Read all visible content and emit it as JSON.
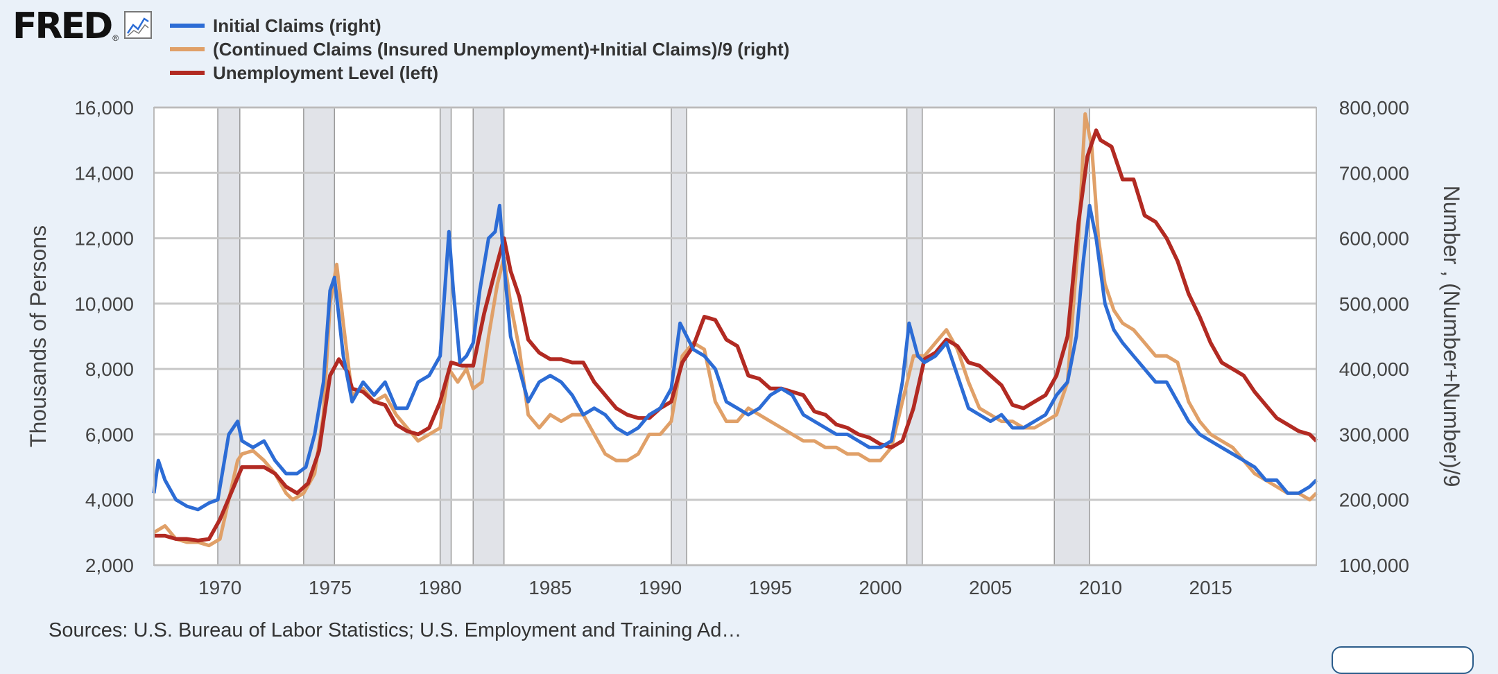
{
  "logo": {
    "text": "FRED",
    "reg": "®"
  },
  "colors": {
    "initial": "#2c6cd5",
    "continued": "#e0a068",
    "unemployment": "#b22a22",
    "recession": "#e1e3e8",
    "grid": "#c8c8c8"
  },
  "source_text": "Sources: U.S. Bureau of Labor Statistics; U.S. Employment and Training Ad…",
  "chart_data": {
    "type": "line",
    "ylabel_left": "Thousands of Persons",
    "ylabel_right": "Number , (Number+Number)/9",
    "ylim_left": [
      2000,
      16000
    ],
    "ylim_right": [
      100000,
      800000
    ],
    "xlim": [
      1967.0,
      2019.8
    ],
    "x_ticks": [
      1970,
      1975,
      1980,
      1985,
      1990,
      1995,
      2000,
      2005,
      2010,
      2015
    ],
    "y_ticks_left": [
      "16,000",
      "14,000",
      "12,000",
      "10,000",
      "8,000",
      "6,000",
      "4,000",
      "2,000"
    ],
    "y_ticks_right": [
      "800,000",
      "700,000",
      "600,000",
      "500,000",
      "400,000",
      "300,000",
      "200,000",
      "100,000"
    ],
    "grid": true,
    "legend_position": "top-left",
    "recessions": [
      [
        1969.9,
        1970.9
      ],
      [
        1973.8,
        1975.2
      ],
      [
        1980.0,
        1980.5
      ],
      [
        1981.5,
        1982.9
      ],
      [
        1990.5,
        1991.2
      ],
      [
        2001.2,
        2001.9
      ],
      [
        2007.9,
        2009.5
      ]
    ],
    "series": [
      {
        "name": "Initial Claims (right)",
        "axis": "right",
        "x": [
          1967.0,
          1967.2,
          1967.5,
          1968.0,
          1968.5,
          1969.0,
          1969.5,
          1969.9,
          1970.2,
          1970.4,
          1970.8,
          1971.0,
          1971.5,
          1972.0,
          1972.5,
          1973.0,
          1973.5,
          1973.9,
          1974.3,
          1974.7,
          1975.0,
          1975.2,
          1975.6,
          1976.0,
          1976.5,
          1977.0,
          1977.5,
          1978.0,
          1978.5,
          1979.0,
          1979.5,
          1980.0,
          1980.4,
          1980.6,
          1980.9,
          1981.2,
          1981.5,
          1981.8,
          1982.2,
          1982.5,
          1982.7,
          1982.9,
          1983.2,
          1983.6,
          1984.0,
          1984.5,
          1985.0,
          1985.5,
          1986.0,
          1986.5,
          1987.0,
          1987.5,
          1988.0,
          1988.5,
          1989.0,
          1989.5,
          1990.0,
          1990.5,
          1990.9,
          1991.2,
          1991.5,
          1992.0,
          1992.5,
          1993.0,
          1993.5,
          1994.0,
          1994.5,
          1995.0,
          1995.5,
          1996.0,
          1996.5,
          1997.0,
          1997.5,
          1998.0,
          1998.5,
          1999.0,
          1999.5,
          2000.0,
          2000.5,
          2001.0,
          2001.3,
          2001.7,
          2002.0,
          2002.5,
          2003.0,
          2003.5,
          2004.0,
          2004.5,
          2005.0,
          2005.5,
          2006.0,
          2006.5,
          2007.0,
          2007.5,
          2008.0,
          2008.5,
          2008.9,
          2009.2,
          2009.5,
          2009.8,
          2010.2,
          2010.6,
          2011.0,
          2011.5,
          2012.0,
          2012.5,
          2013.0,
          2013.5,
          2014.0,
          2014.5,
          2015.0,
          2015.5,
          2016.0,
          2016.5,
          2017.0,
          2017.5,
          2018.0,
          2018.5,
          2019.0,
          2019.5,
          2019.8
        ],
        "y": [
          210000,
          260000,
          230000,
          200000,
          190000,
          185000,
          195000,
          200000,
          260000,
          300000,
          320000,
          290000,
          280000,
          290000,
          260000,
          240000,
          240000,
          250000,
          300000,
          380000,
          520000,
          540000,
          420000,
          350000,
          380000,
          360000,
          380000,
          340000,
          340000,
          380000,
          390000,
          420000,
          610000,
          520000,
          410000,
          420000,
          440000,
          520000,
          600000,
          610000,
          650000,
          560000,
          450000,
          400000,
          350000,
          380000,
          390000,
          380000,
          360000,
          330000,
          340000,
          330000,
          310000,
          300000,
          310000,
          330000,
          340000,
          370000,
          470000,
          450000,
          430000,
          420000,
          400000,
          350000,
          340000,
          330000,
          340000,
          360000,
          370000,
          360000,
          330000,
          320000,
          310000,
          300000,
          300000,
          290000,
          280000,
          280000,
          290000,
          380000,
          470000,
          420000,
          410000,
          420000,
          440000,
          390000,
          340000,
          330000,
          320000,
          330000,
          310000,
          310000,
          320000,
          330000,
          360000,
          380000,
          450000,
          560000,
          650000,
          600000,
          500000,
          460000,
          440000,
          420000,
          400000,
          380000,
          380000,
          350000,
          320000,
          300000,
          290000,
          280000,
          270000,
          260000,
          250000,
          230000,
          230000,
          210000,
          210000,
          220000,
          230000
        ],
        "stroke_width": 5
      },
      {
        "name": "(Continued Claims (Insured Unemployment)+Initial Claims)/9 (right)",
        "axis": "right",
        "x": [
          1967.0,
          1967.5,
          1968.0,
          1968.5,
          1969.0,
          1969.5,
          1970.0,
          1970.4,
          1970.8,
          1971.0,
          1971.5,
          1972.0,
          1972.5,
          1973.0,
          1973.3,
          1973.8,
          1974.3,
          1974.7,
          1975.0,
          1975.3,
          1975.6,
          1976.0,
          1976.5,
          1977.0,
          1977.5,
          1978.0,
          1978.5,
          1979.0,
          1979.5,
          1980.0,
          1980.4,
          1980.8,
          1981.2,
          1981.5,
          1981.9,
          1982.2,
          1982.6,
          1982.9,
          1983.2,
          1983.6,
          1984.0,
          1984.5,
          1985.0,
          1985.5,
          1986.0,
          1986.5,
          1987.0,
          1987.5,
          1988.0,
          1988.5,
          1989.0,
          1989.5,
          1990.0,
          1990.5,
          1991.0,
          1991.5,
          1992.0,
          1992.5,
          1993.0,
          1993.5,
          1994.0,
          1994.5,
          1995.0,
          1995.5,
          1996.0,
          1996.5,
          1997.0,
          1997.5,
          1998.0,
          1998.5,
          1999.0,
          1999.5,
          2000.0,
          2000.5,
          2001.0,
          2001.5,
          2002.0,
          2002.5,
          2003.0,
          2003.5,
          2004.0,
          2004.5,
          2005.0,
          2005.5,
          2006.0,
          2006.5,
          2007.0,
          2007.5,
          2008.0,
          2008.5,
          2009.0,
          2009.3,
          2009.6,
          2009.9,
          2010.2,
          2010.6,
          2011.0,
          2011.5,
          2012.0,
          2012.5,
          2013.0,
          2013.5,
          2014.0,
          2014.5,
          2015.0,
          2015.5,
          2016.0,
          2016.5,
          2017.0,
          2017.5,
          2018.0,
          2018.5,
          2019.0,
          2019.5,
          2019.8
        ],
        "y": [
          150000,
          160000,
          140000,
          135000,
          135000,
          130000,
          140000,
          200000,
          260000,
          270000,
          275000,
          260000,
          240000,
          210000,
          200000,
          210000,
          240000,
          330000,
          500000,
          560000,
          470000,
          360000,
          370000,
          350000,
          360000,
          330000,
          310000,
          290000,
          300000,
          310000,
          400000,
          380000,
          400000,
          370000,
          380000,
          450000,
          530000,
          570000,
          500000,
          430000,
          330000,
          310000,
          330000,
          320000,
          330000,
          330000,
          300000,
          270000,
          260000,
          260000,
          270000,
          300000,
          300000,
          320000,
          420000,
          440000,
          430000,
          350000,
          320000,
          320000,
          340000,
          330000,
          320000,
          310000,
          300000,
          290000,
          290000,
          280000,
          280000,
          270000,
          270000,
          260000,
          260000,
          280000,
          350000,
          420000,
          420000,
          440000,
          460000,
          430000,
          380000,
          340000,
          330000,
          320000,
          320000,
          310000,
          310000,
          320000,
          330000,
          380000,
          600000,
          790000,
          740000,
          600000,
          530000,
          490000,
          470000,
          460000,
          440000,
          420000,
          420000,
          410000,
          350000,
          320000,
          300000,
          290000,
          280000,
          260000,
          240000,
          230000,
          220000,
          210000,
          210000,
          200000,
          210000
        ],
        "stroke_width": 5
      },
      {
        "name": "Unemployment Level (left)",
        "axis": "left",
        "x": [
          1967.0,
          1967.5,
          1968.0,
          1968.5,
          1969.0,
          1969.5,
          1970.0,
          1970.5,
          1971.0,
          1971.5,
          1972.0,
          1972.5,
          1973.0,
          1973.5,
          1974.0,
          1974.5,
          1975.0,
          1975.4,
          1975.8,
          1976.0,
          1976.5,
          1977.0,
          1977.5,
          1978.0,
          1978.5,
          1979.0,
          1979.5,
          1980.0,
          1980.5,
          1981.0,
          1981.5,
          1982.0,
          1982.5,
          1982.9,
          1983.2,
          1983.6,
          1984.0,
          1984.5,
          1985.0,
          1985.5,
          1986.0,
          1986.5,
          1987.0,
          1987.5,
          1988.0,
          1988.5,
          1989.0,
          1989.5,
          1990.0,
          1990.5,
          1991.0,
          1991.5,
          1992.0,
          1992.5,
          1993.0,
          1993.5,
          1994.0,
          1994.5,
          1995.0,
          1995.5,
          1996.0,
          1996.5,
          1997.0,
          1997.5,
          1998.0,
          1998.5,
          1999.0,
          1999.5,
          2000.0,
          2000.5,
          2001.0,
          2001.5,
          2002.0,
          2002.5,
          2003.0,
          2003.5,
          2004.0,
          2004.5,
          2005.0,
          2005.5,
          2006.0,
          2006.5,
          2007.0,
          2007.5,
          2008.0,
          2008.5,
          2009.0,
          2009.4,
          2009.8,
          2010.0,
          2010.5,
          2011.0,
          2011.5,
          2012.0,
          2012.5,
          2013.0,
          2013.5,
          2014.0,
          2014.5,
          2015.0,
          2015.5,
          2016.0,
          2016.5,
          2017.0,
          2017.5,
          2018.0,
          2018.5,
          2019.0,
          2019.5,
          2019.8
        ],
        "y": [
          2900,
          2900,
          2800,
          2800,
          2750,
          2800,
          3400,
          4200,
          5000,
          5000,
          5000,
          4800,
          4400,
          4200,
          4500,
          5500,
          7800,
          8300,
          7900,
          7400,
          7300,
          7000,
          6900,
          6300,
          6100,
          6000,
          6200,
          7000,
          8200,
          8100,
          8100,
          9700,
          11000,
          12000,
          11000,
          10200,
          8900,
          8500,
          8300,
          8300,
          8200,
          8200,
          7600,
          7200,
          6800,
          6600,
          6500,
          6500,
          6800,
          7000,
          8200,
          8700,
          9600,
          9500,
          8900,
          8700,
          7800,
          7700,
          7400,
          7400,
          7300,
          7200,
          6700,
          6600,
          6300,
          6200,
          6000,
          5900,
          5700,
          5600,
          5800,
          6800,
          8300,
          8500,
          8900,
          8700,
          8200,
          8100,
          7800,
          7500,
          6900,
          6800,
          7000,
          7200,
          7800,
          9000,
          12500,
          14500,
          15300,
          15000,
          14800,
          13800,
          13800,
          12700,
          12500,
          12000,
          11300,
          10300,
          9600,
          8800,
          8200,
          8000,
          7800,
          7300,
          6900,
          6500,
          6300,
          6100,
          6000,
          5800
        ],
        "stroke_width": 5.5
      }
    ]
  }
}
